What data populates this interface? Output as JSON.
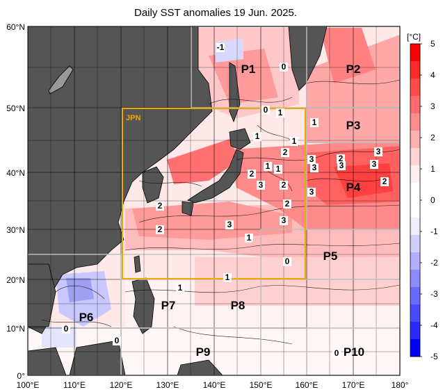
{
  "title": "Daily SST anomalies 19 Jun. 2025.",
  "axes": {
    "lon_labels": [
      "100°E",
      "110°E",
      "120°E",
      "130°E",
      "140°E",
      "150°E",
      "160°E",
      "170°E",
      "180°"
    ],
    "lat_labels": [
      "60°N",
      "50°N",
      "40°N",
      "30°N",
      "20°N",
      "10°N",
      "0°"
    ]
  },
  "colorbar": {
    "unit": "[°C]",
    "ticks": [
      "5",
      "4",
      "3",
      "2",
      "1",
      "0",
      "-1",
      "-2",
      "-3",
      "-4",
      "-5"
    ],
    "colors": [
      "#ff0000",
      "#ff2a2a",
      "#ff4a4a",
      "#ff6a6a",
      "#ff8c8c",
      "#ffb0b0",
      "#ffd4d4",
      "#fff0f0",
      "#ffffff",
      "#ffffff",
      "#eeeeff",
      "#d0d0ff",
      "#b0b0ff",
      "#8c8cff",
      "#6a6aff",
      "#4a4aff",
      "#2a2aff",
      "#0000ff"
    ]
  },
  "jpn_box": {
    "label": "JPN",
    "color": "#f0a800"
  },
  "regions": [
    "P1",
    "P2",
    "P3",
    "P4",
    "P5",
    "P6",
    "P7",
    "P8",
    "P9",
    "P10"
  ],
  "contour_labels": [
    "-1",
    "0",
    "1",
    "1",
    "1",
    "1",
    "1",
    "2",
    "1",
    "0",
    "2",
    "3",
    "3",
    "3",
    "2",
    "3",
    "3",
    "2",
    "3",
    "3",
    "2",
    "3",
    "3",
    "2",
    "2",
    "1",
    "2",
    "0",
    "0",
    "1",
    "1",
    "0",
    "0"
  ],
  "colors": {
    "land": "#555555",
    "grid": "#000000",
    "region_box": "#bbbbbb"
  }
}
